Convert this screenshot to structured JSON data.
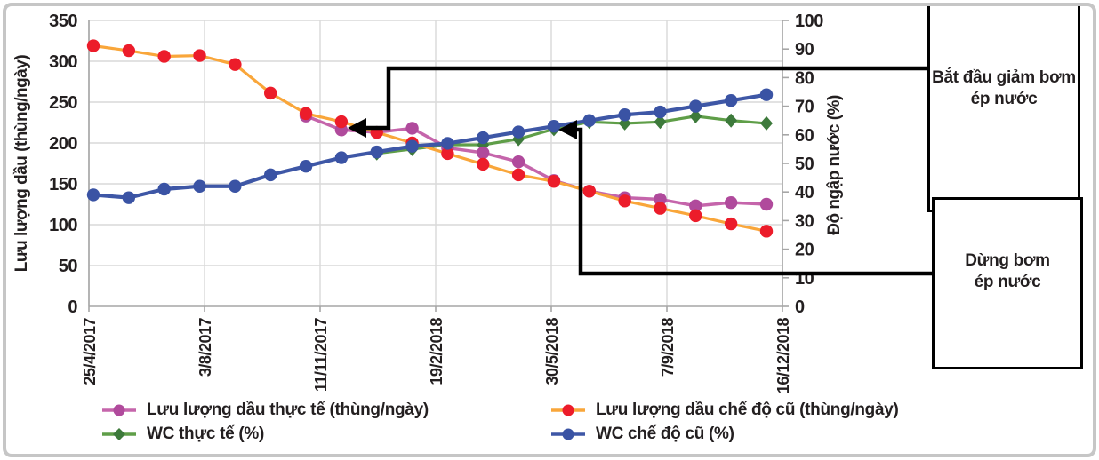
{
  "figure": {
    "background": "#ffffff",
    "frame_color": "#c6c6c6",
    "text_color": "#231f20",
    "grid_color": "#d9d9d9",
    "axis_color": "#a6a6a6",
    "annotation_line_color": "#000000"
  },
  "chart_data": {
    "type": "line",
    "title": "",
    "x_axis": {
      "tick_labels": [
        "25/4/2017",
        "3/8/2017",
        "11/11/2017",
        "19/2/2018",
        "30/5/2018",
        "7/9/2018",
        "16/12/2018"
      ]
    },
    "left_axis": {
      "label": "Lưu lượng dầu (thùng/ngày)",
      "min": 0,
      "max": 350,
      "step": 50,
      "tick_labels": [
        "0",
        "50",
        "100",
        "150",
        "200",
        "250",
        "300",
        "350"
      ]
    },
    "right_axis": {
      "label": "Độ ngập nước (%)",
      "min": 0,
      "max": 100,
      "step": 10,
      "tick_labels": [
        "0",
        "10",
        "20",
        "30",
        "40",
        "50",
        "60",
        "70",
        "80",
        "90",
        "100"
      ]
    },
    "n_points": 20,
    "series": [
      {
        "id": "oil-actual",
        "name": "Lưu lượng dầu thực tế (thùng/ngày)",
        "axis": "left",
        "marker": "circle",
        "color_marker": "#b04a9c",
        "color_line": "#c565ab",
        "start_index": 6,
        "values": [
          233,
          216,
          213,
          218,
          194,
          188,
          177,
          154,
          141,
          133,
          131,
          123,
          127,
          125
        ]
      },
      {
        "id": "oil-old-regime",
        "name": "Lưu lượng dầu chế độ cũ (thùng/ngày)",
        "axis": "left",
        "marker": "circle",
        "color_marker": "#ec1c2a",
        "color_line": "#f9a63a",
        "start_index": 0,
        "values": [
          319,
          313,
          306,
          307,
          296,
          261,
          236,
          226,
          213,
          200,
          187,
          174,
          161,
          153,
          141,
          129,
          120,
          111,
          101,
          92
        ]
      },
      {
        "id": "wc-actual",
        "name": "WC thực tế (%)",
        "axis": "right",
        "marker": "diamond",
        "color_marker": "#3d7a3b",
        "color_line": "#5f9e48",
        "start_index": 8,
        "values": [
          53.5,
          55,
          56.5,
          56.5,
          58.5,
          62,
          64.5,
          64,
          64.5,
          66.5,
          65,
          64
        ]
      },
      {
        "id": "wc-old-regime",
        "name": "WC chế độ cũ (%)",
        "axis": "right",
        "marker": "circle",
        "color_marker": "#3a53a4",
        "color_line": "#3e57a6",
        "start_index": 0,
        "values": [
          39,
          38,
          41,
          42,
          42,
          46,
          49,
          52,
          54,
          56,
          57,
          59,
          61,
          63,
          65,
          67,
          68,
          70,
          72,
          74
        ]
      }
    ],
    "annotations": [
      {
        "id": "start-reduce-injection",
        "line1": "Bắt đầu giảm bơm",
        "line2": "ép nước"
      },
      {
        "id": "stop-injection",
        "line1": "Dừng bơm",
        "line2": "ép nước"
      }
    ]
  }
}
